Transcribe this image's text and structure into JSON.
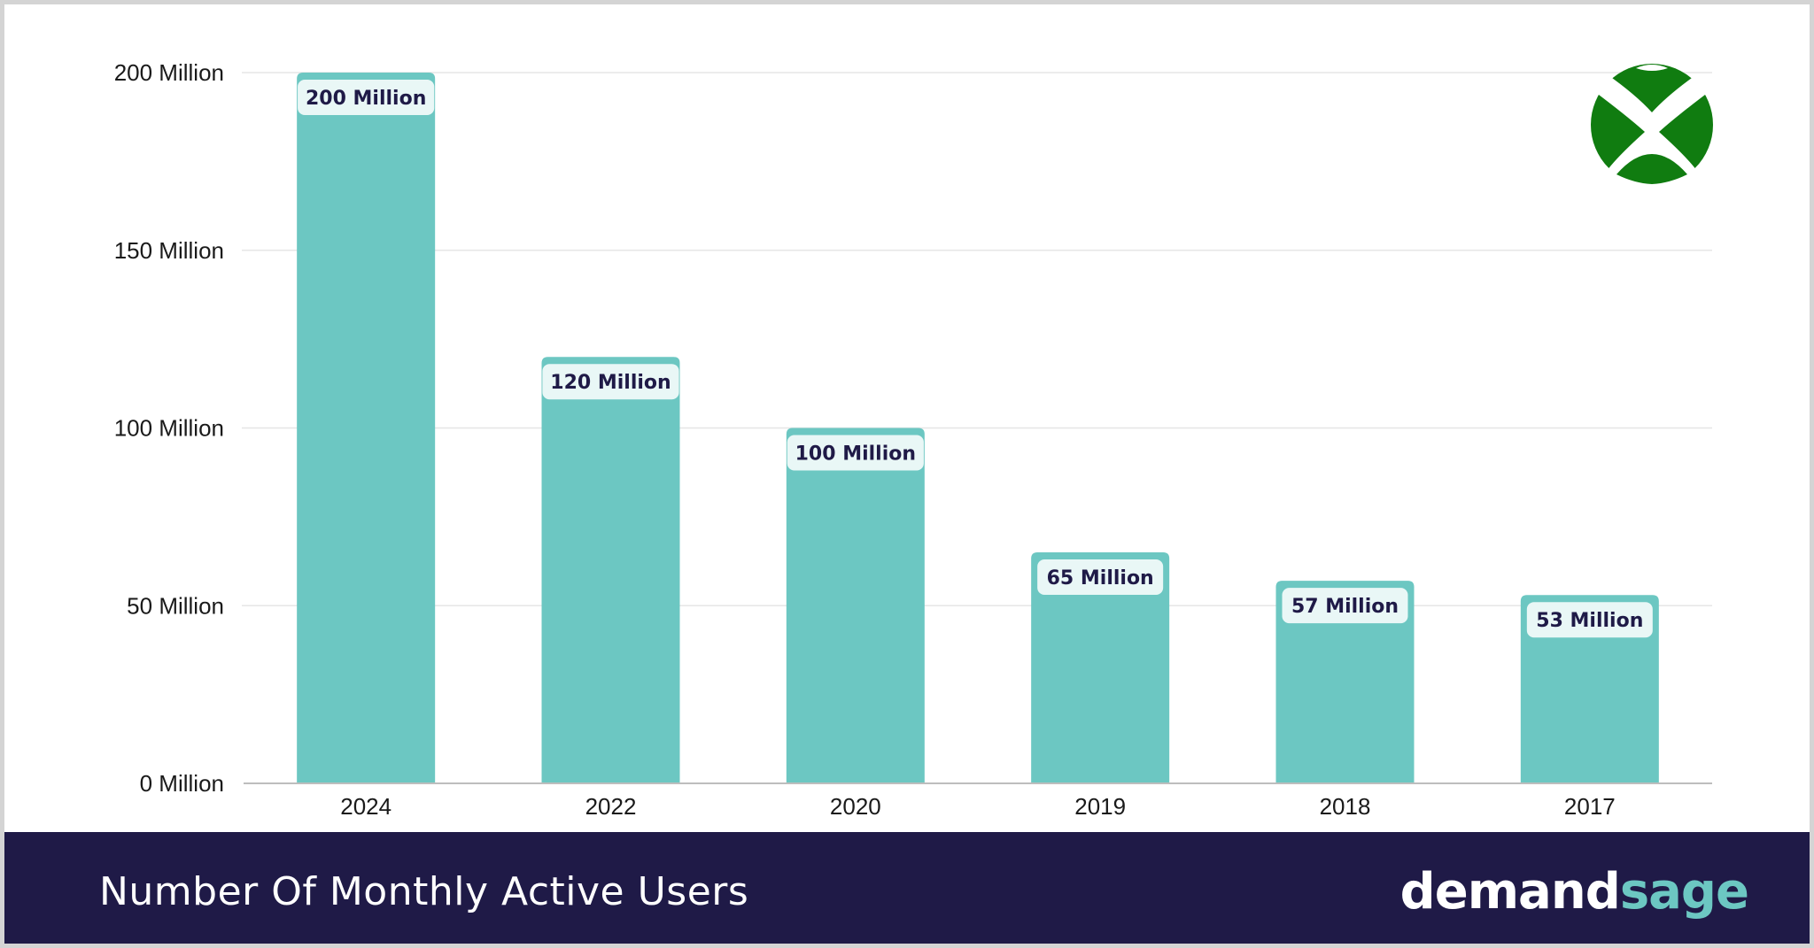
{
  "colors": {
    "bar": "#6cc7c2",
    "label_bg": "#e9f7f6",
    "label_text": "#1f1a47",
    "footer_bg": "#1f1a47",
    "grid": "#e6e6e6",
    "logo_green": "#107c10"
  },
  "logo": {
    "icon": "xbox-logo-icon"
  },
  "footer": {
    "title": "Number Of Monthly Active Users",
    "brand_part1": "demand",
    "brand_part2": "sage"
  },
  "chart_data": {
    "type": "bar",
    "categories": [
      "2024",
      "2022",
      "2020",
      "2019",
      "2018",
      "2017"
    ],
    "values": [
      200,
      120,
      100,
      65,
      57,
      53
    ],
    "data_labels": [
      "200 Million",
      "120 Million",
      "100 Million",
      "65 Million",
      "57 Million",
      "53 Million"
    ],
    "yticks": [
      0,
      50,
      100,
      150,
      200
    ],
    "ytick_labels": [
      "0 Million",
      "50 Million",
      "100 Million",
      "150 Million",
      "200 Million"
    ],
    "ylim": [
      0,
      200
    ],
    "grid": true,
    "title": "Number Of Monthly Active Users"
  }
}
